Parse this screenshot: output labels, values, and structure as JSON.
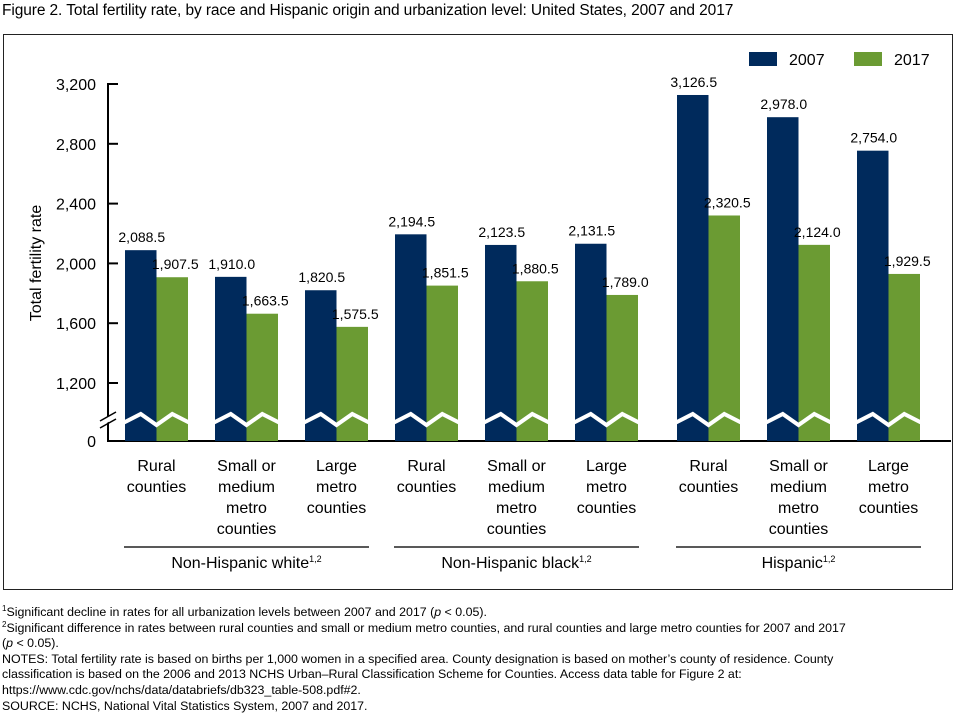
{
  "title": "Figure 2. Total fertility rate, by race and Hispanic origin and urbanization level: United States, 2007 and 2017",
  "colors": {
    "series_2007": "#002a5c",
    "series_2017": "#6b9b33"
  },
  "chart_data": {
    "type": "bar",
    "title": "Figure 2. Total fertility rate, by race and Hispanic origin and urbanization level: United States, 2007 and 2017",
    "xlabel": "",
    "ylabel": "Total fertility rate",
    "ylim": [
      0,
      3200
    ],
    "axis_break": "between 0 and 1,200",
    "yticks": [
      "0",
      "1,200",
      "1,600",
      "2,000",
      "2,400",
      "2,800",
      "3,200"
    ],
    "ytick_values": [
      0,
      1200,
      1600,
      2000,
      2400,
      2800,
      3200
    ],
    "grid": false,
    "legend_position": "top-right",
    "groups": [
      {
        "label": "Non-Hispanic white",
        "sup": "1,2",
        "categories": [
          {
            "lines": [
              "Rural",
              "counties"
            ]
          },
          {
            "lines": [
              "Small or",
              "medium",
              "metro",
              "counties"
            ]
          },
          {
            "lines": [
              "Large",
              "metro",
              "counties"
            ]
          }
        ]
      },
      {
        "label": "Non-Hispanic black",
        "sup": "1,2",
        "categories": [
          {
            "lines": [
              "Rural",
              "counties"
            ]
          },
          {
            "lines": [
              "Small or",
              "medium",
              "metro",
              "counties"
            ]
          },
          {
            "lines": [
              "Large",
              "metro",
              "counties"
            ]
          }
        ]
      },
      {
        "label": "Hispanic",
        "sup": "1,2",
        "categories": [
          {
            "lines": [
              "Rural",
              "counties"
            ]
          },
          {
            "lines": [
              "Small or",
              "medium",
              "metro",
              "counties"
            ]
          },
          {
            "lines": [
              "Large",
              "metro",
              "counties"
            ]
          }
        ]
      }
    ],
    "series": [
      {
        "name": "2007",
        "values": [
          2088.5,
          1910.0,
          1820.5,
          2194.5,
          2123.5,
          2131.5,
          3126.5,
          2978.0,
          2754.0
        ],
        "labels": [
          "2,088.5",
          "1,910.0",
          "1,820.5",
          "2,194.5",
          "2,123.5",
          "2,131.5",
          "3,126.5",
          "2,978.0",
          "2,754.0"
        ]
      },
      {
        "name": "2017",
        "values": [
          1907.5,
          1663.5,
          1575.5,
          1851.5,
          1880.5,
          1789.0,
          2320.5,
          2124.0,
          1929.5
        ],
        "labels": [
          "1,907.5",
          "1,663.5",
          "1,575.5",
          "1,851.5",
          "1,880.5",
          "1,789.0",
          "2,320.5",
          "2,124.0",
          "1,929.5"
        ]
      }
    ]
  },
  "footnotes": {
    "note1_sup": "1",
    "note1_text": "Significant decline in rates for all urbanization levels between 2007 and 2017 (",
    "note1_p": "p",
    "note1_end": " < 0.05).",
    "note2_sup": "2",
    "note2_text": "Significant difference in rates between rural counties and small or medium metro counties, and rural counties and large metro counties for 2007 and 2017",
    "note2_p_open": "(",
    "note2_p": "p",
    "note2_end": " < 0.05).",
    "notes_line1": "NOTES: Total fertility rate is based on births per 1,000 women in a specified area. County designation is based on mother’s county of residence. County",
    "notes_line2": "classification is based on the 2006 and 2013 NCHS Urban–Rural Classification Scheme for Counties. Access data table for Figure 2 at:",
    "notes_line3": "https://www.cdc.gov/nchs/data/databriefs/db323_table-508.pdf#2.",
    "source": "SOURCE: NCHS, National Vital Statistics System, 2007 and 2017."
  }
}
